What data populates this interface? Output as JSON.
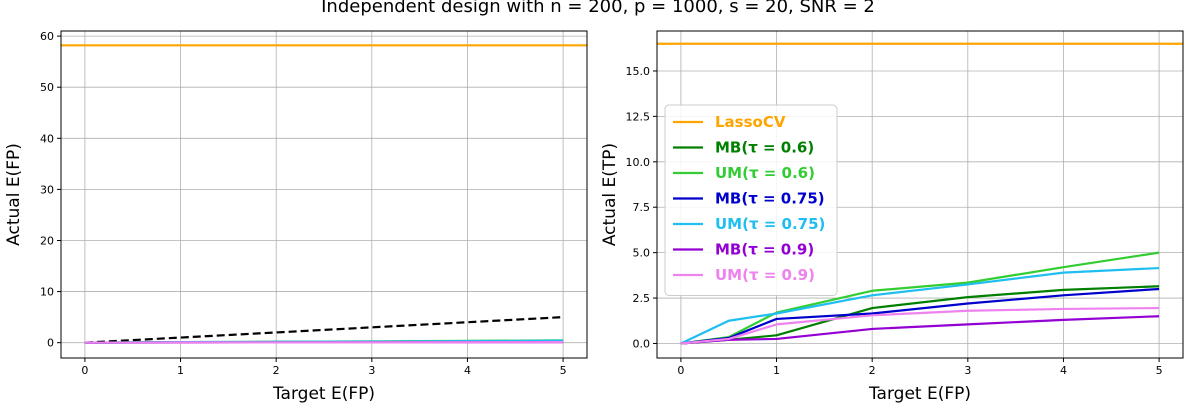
{
  "figure": {
    "title": "Independent design with n = 200, p = 1000, s = 20, SNR = 2"
  },
  "chart_data": [
    {
      "type": "line",
      "xlabel": "Target E(FP)",
      "ylabel": "Actual E(FP)",
      "xlim": [
        -0.25,
        5.25
      ],
      "ylim": [
        -3,
        61
      ],
      "xticks": [
        0,
        1,
        2,
        3,
        4,
        5
      ],
      "yticks": [
        0,
        10,
        20,
        30,
        40,
        50,
        60
      ],
      "grid": true,
      "series": [
        {
          "color": "#FFA500",
          "dash": "solid",
          "x": [
            -0.25,
            5.25
          ],
          "y": [
            58.2,
            58.2
          ]
        },
        {
          "color": "#000000",
          "dash": "dashed",
          "x": [
            0,
            5
          ],
          "y": [
            0,
            5
          ]
        },
        {
          "color": "#008000",
          "dash": "solid",
          "x": [
            0,
            0.5,
            1,
            2,
            3,
            4,
            5
          ],
          "y": [
            0,
            0.05,
            0.1,
            0.15,
            0.2,
            0.25,
            0.3
          ]
        },
        {
          "color": "#32CD32",
          "dash": "solid",
          "x": [
            0,
            0.5,
            1,
            2,
            3,
            4,
            5
          ],
          "y": [
            0,
            0.05,
            0.1,
            0.15,
            0.25,
            0.35,
            0.45
          ]
        },
        {
          "color": "#0000CD",
          "dash": "solid",
          "x": [
            0,
            0.5,
            1,
            2,
            3,
            4,
            5
          ],
          "y": [
            0,
            0.03,
            0.05,
            0.1,
            0.12,
            0.15,
            0.2
          ]
        },
        {
          "color": "#1EBEF0",
          "dash": "solid",
          "x": [
            0,
            0.5,
            1,
            2,
            3,
            4,
            5
          ],
          "y": [
            0,
            0.05,
            0.1,
            0.15,
            0.2,
            0.3,
            0.4
          ]
        },
        {
          "color": "#9400D3",
          "dash": "solid",
          "x": [
            0,
            0.5,
            1,
            2,
            3,
            4,
            5
          ],
          "y": [
            0,
            0.02,
            0.03,
            0.05,
            0.07,
            0.08,
            0.1
          ]
        },
        {
          "color": "#EE82EE",
          "dash": "solid",
          "x": [
            0,
            0.5,
            1,
            2,
            3,
            4,
            5
          ],
          "y": [
            0,
            0.02,
            0.03,
            0.05,
            0.06,
            0.08,
            0.1
          ]
        }
      ]
    },
    {
      "type": "line",
      "xlabel": "Target E(FP)",
      "ylabel": "Actual E(TP)",
      "xlim": [
        -0.25,
        5.25
      ],
      "ylim": [
        -0.8,
        17.2
      ],
      "xticks": [
        0,
        1,
        2,
        3,
        4,
        5
      ],
      "yticks": [
        0.0,
        2.5,
        5.0,
        7.5,
        10.0,
        12.5,
        15.0
      ],
      "grid": true,
      "legend_position": "center-left",
      "series": [
        {
          "name": "LassoCV",
          "color": "#FFA500",
          "dash": "solid",
          "x": [
            -0.25,
            5.25
          ],
          "y": [
            16.5,
            16.5
          ]
        },
        {
          "name": "MB(τ = 0.6)",
          "color": "#008000",
          "dash": "solid",
          "x": [
            0,
            0.5,
            1,
            2,
            3,
            4,
            5
          ],
          "y": [
            0,
            0.2,
            0.45,
            1.95,
            2.55,
            2.95,
            3.15
          ]
        },
        {
          "name": "UM(τ = 0.6)",
          "color": "#32CD32",
          "dash": "solid",
          "x": [
            0,
            0.5,
            1,
            2,
            3,
            4,
            5
          ],
          "y": [
            0,
            0.35,
            1.7,
            2.9,
            3.35,
            4.2,
            5.0
          ]
        },
        {
          "name": "MB(τ = 0.75)",
          "color": "#0000CD",
          "dash": "solid",
          "x": [
            0,
            0.5,
            1,
            2,
            3,
            4,
            5
          ],
          "y": [
            0,
            0.3,
            1.35,
            1.65,
            2.2,
            2.65,
            3.0
          ]
        },
        {
          "name": "UM(τ = 0.75)",
          "color": "#1EBEF0",
          "dash": "solid",
          "x": [
            0,
            0.5,
            1,
            2,
            3,
            4,
            5
          ],
          "y": [
            0,
            1.25,
            1.65,
            2.65,
            3.25,
            3.9,
            4.15
          ]
        },
        {
          "name": "MB(τ = 0.9)",
          "color": "#9400D3",
          "dash": "solid",
          "x": [
            0,
            0.5,
            1,
            2,
            3,
            4,
            5
          ],
          "y": [
            0,
            0.2,
            0.25,
            0.8,
            1.05,
            1.3,
            1.5
          ]
        },
        {
          "name": "UM(τ = 0.9)",
          "color": "#EE82EE",
          "dash": "solid",
          "x": [
            0,
            0.5,
            1,
            2,
            3,
            4,
            5
          ],
          "y": [
            0,
            0.25,
            1.05,
            1.55,
            1.8,
            1.9,
            1.95
          ]
        }
      ]
    }
  ]
}
